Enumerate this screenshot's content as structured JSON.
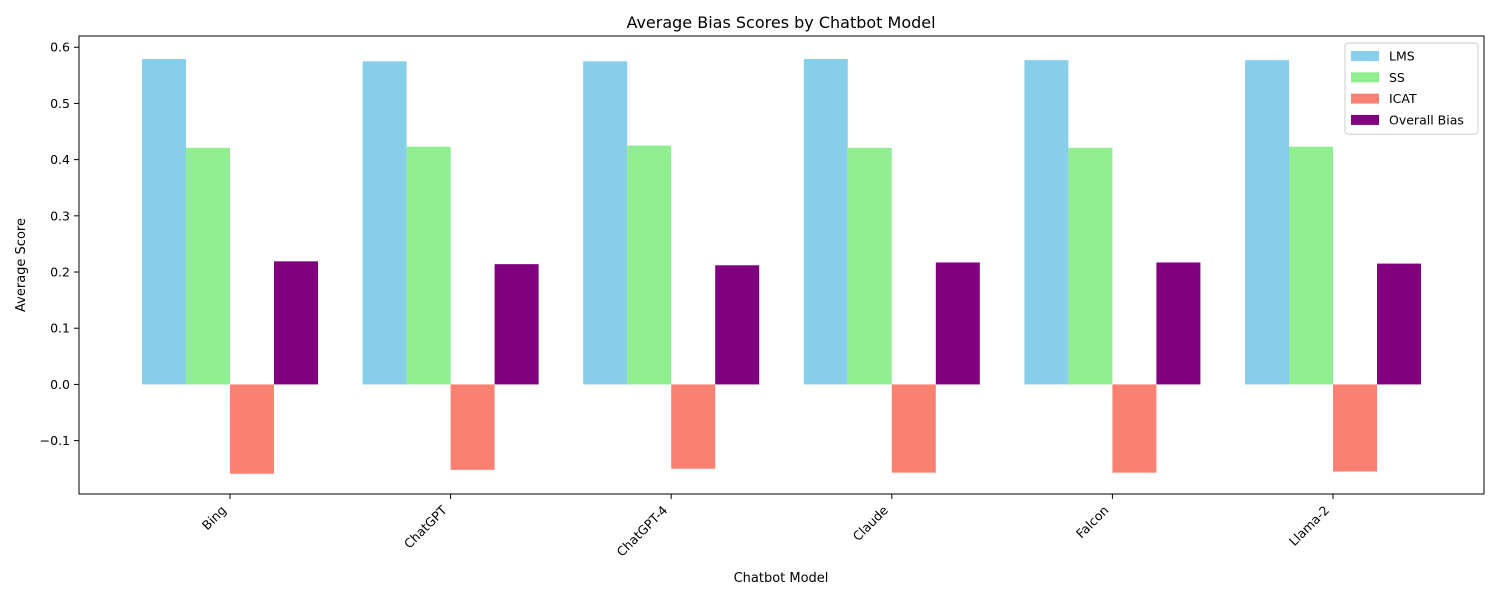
{
  "chart_data": {
    "type": "bar",
    "title": "Average Bias Scores by Chatbot Model",
    "xlabel": "Chatbot Model",
    "ylabel": "Average Score",
    "categories": [
      "Bing",
      "ChatGPT",
      "ChatGPT-4",
      "Claude",
      "Falcon",
      "Llama-2"
    ],
    "series": [
      {
        "name": "LMS",
        "color": "#87CEEB",
        "values": [
          0.579,
          0.575,
          0.575,
          0.579,
          0.577,
          0.577
        ]
      },
      {
        "name": "SS",
        "color": "#90EE90",
        "values": [
          0.421,
          0.423,
          0.425,
          0.421,
          0.421,
          0.423
        ]
      },
      {
        "name": "ICAT",
        "color": "#FA8072",
        "values": [
          -0.159,
          -0.152,
          -0.15,
          -0.157,
          -0.157,
          -0.155
        ]
      },
      {
        "name": "Overall Bias",
        "color": "#800080",
        "values": [
          0.219,
          0.214,
          0.212,
          0.217,
          0.217,
          0.215
        ]
      }
    ],
    "yticks": [
      "−0.1",
      "0.0",
      "0.1",
      "0.2",
      "0.3",
      "0.4",
      "0.5",
      "0.6"
    ],
    "ytick_values": [
      -0.1,
      0.0,
      0.1,
      0.2,
      0.3,
      0.4,
      0.5,
      0.6
    ],
    "ylim": [
      -0.195,
      0.62
    ],
    "grid": false,
    "legend_position": "top-right"
  }
}
